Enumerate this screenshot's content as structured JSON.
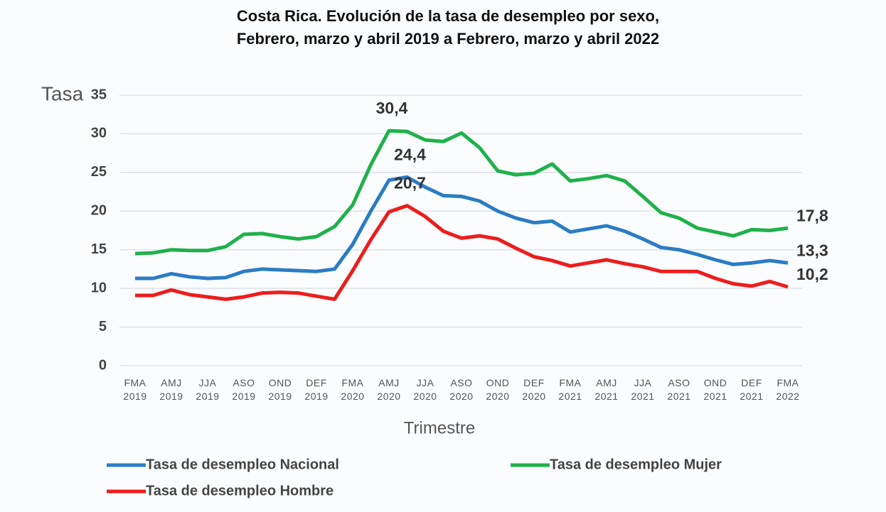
{
  "chart_data": {
    "type": "line",
    "title": [
      "Costa Rica. Evolución de la tasa de desempleo por sexo,",
      "Febrero, marzo y abril 2019 a Febrero, marzo y abril 2022"
    ],
    "y_label": "Tasa",
    "x_label": "Trimestre",
    "categories": [
      "FMA 2019",
      null,
      "AMJ 2019",
      null,
      "JJA 2019",
      null,
      "ASO 2019",
      null,
      "OND 2019",
      null,
      "DEF 2019",
      null,
      "FMA 2020",
      null,
      "AMJ 2020",
      null,
      "JJA 2020",
      null,
      "ASO 2020",
      null,
      "OND 2020",
      null,
      "DEF 2020",
      null,
      "FMA 2021",
      null,
      "AMJ 2021",
      null,
      "JJA 2021",
      null,
      "ASO 2021",
      null,
      "OND 2021",
      null,
      "DEF 2021",
      null,
      "FMA 2022"
    ],
    "ylim": [
      0,
      35
    ],
    "yticks": [
      0,
      5,
      10,
      15,
      20,
      25,
      30,
      35
    ],
    "grid": true,
    "legend": "bottom",
    "series": [
      {
        "name": "Tasa de desempleo Nacional",
        "color": "#2b7cc4",
        "values": [
          11.3,
          11.3,
          11.9,
          11.5,
          11.3,
          11.4,
          12.2,
          12.5,
          12.4,
          12.3,
          12.2,
          12.5,
          15.7,
          20.0,
          24.0,
          24.4,
          23.1,
          22.0,
          21.9,
          21.3,
          20.0,
          19.1,
          18.5,
          18.7,
          17.3,
          17.7,
          18.1,
          17.4,
          16.4,
          15.3,
          15.0,
          14.4,
          13.7,
          13.1,
          13.3,
          13.6,
          13.3
        ],
        "value_labels": [
          null,
          null,
          null,
          null,
          null,
          null,
          null,
          null,
          null,
          null,
          null,
          null,
          null,
          null,
          null,
          "24,4",
          null,
          null,
          null,
          null,
          null,
          null,
          null,
          null,
          null,
          null,
          null,
          null,
          null,
          null,
          null,
          null,
          null,
          null,
          null,
          null,
          "13,3"
        ]
      },
      {
        "name": "Tasa de desempleo Mujer",
        "color": "#1fb14b",
        "values": [
          14.5,
          14.6,
          15.0,
          14.9,
          14.9,
          15.4,
          17.0,
          17.1,
          16.7,
          16.4,
          16.7,
          18.0,
          20.8,
          26.0,
          30.4,
          30.3,
          29.2,
          29.0,
          30.1,
          28.2,
          25.2,
          24.7,
          24.9,
          26.1,
          23.9,
          24.2,
          24.6,
          23.9,
          21.9,
          19.8,
          19.1,
          17.8,
          17.3,
          16.8,
          17.6,
          17.5,
          17.8
        ],
        "value_labels": [
          null,
          null,
          null,
          null,
          null,
          null,
          null,
          null,
          null,
          null,
          null,
          null,
          null,
          null,
          "30,4",
          null,
          null,
          null,
          null,
          null,
          null,
          null,
          null,
          null,
          null,
          null,
          null,
          null,
          null,
          null,
          null,
          null,
          null,
          null,
          null,
          null,
          "17,8"
        ]
      },
      {
        "name": "Tasa de desempleo Hombre",
        "color": "#ee1c1c",
        "values": [
          9.1,
          9.1,
          9.8,
          9.2,
          8.9,
          8.6,
          8.9,
          9.4,
          9.5,
          9.4,
          9.0,
          8.6,
          12.3,
          16.3,
          19.9,
          20.7,
          19.3,
          17.4,
          16.5,
          16.8,
          16.4,
          15.2,
          14.1,
          13.6,
          12.9,
          13.3,
          13.7,
          13.2,
          12.8,
          12.2,
          12.2,
          12.2,
          11.3,
          10.6,
          10.3,
          10.9,
          10.2
        ],
        "value_labels": [
          null,
          null,
          null,
          null,
          null,
          null,
          null,
          null,
          null,
          null,
          null,
          null,
          null,
          null,
          null,
          "20,7",
          null,
          null,
          null,
          null,
          null,
          null,
          null,
          null,
          null,
          null,
          null,
          null,
          null,
          null,
          null,
          null,
          null,
          null,
          null,
          null,
          "10,2"
        ]
      }
    ]
  }
}
